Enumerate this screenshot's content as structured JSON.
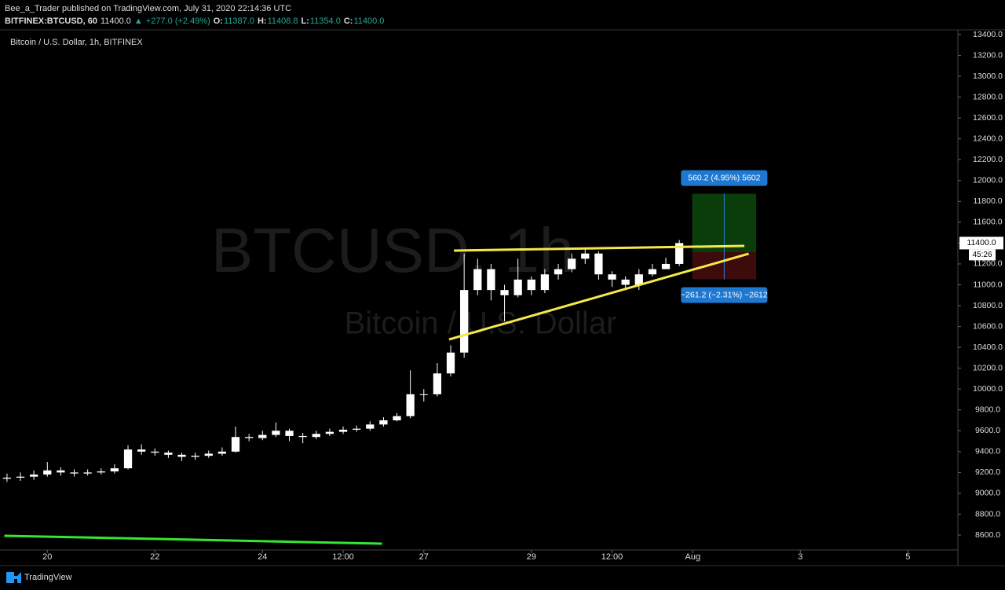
{
  "header": {
    "line1": "Bee_a_Trader published on TradingView.com, July 31, 2020 22:14:36 UTC",
    "symbol": "BITFINEX:BTCUSD, 60",
    "price": "11400.0",
    "arrow": "▲",
    "change": "+277.0 (+2.49%)",
    "ohlc": [
      {
        "label": "O:",
        "value": "11387.0"
      },
      {
        "label": "H:",
        "value": "11408.8"
      },
      {
        "label": "L:",
        "value": "11354.0"
      },
      {
        "label": "C:",
        "value": "11400.0"
      }
    ]
  },
  "footer": "TradingView",
  "chart_data": {
    "type": "candlestick",
    "title": "Bitcoin / U.S. Dollar, 1h, BITFINEX",
    "watermark": "BTCUSD, 1h",
    "watermark_sub": "Bitcoin / U.S. Dollar",
    "color": "#ffffff",
    "grid": false,
    "xlim": [
      19.12,
      36.93
    ],
    "xticks": [
      20,
      22,
      24,
      {
        "value": 25.5,
        "label": "12:00"
      },
      27,
      29,
      {
        "value": 30.5,
        "label": "12:00"
      },
      {
        "value": 32,
        "label": "Aug"
      },
      {
        "value": 34,
        "label": "3"
      },
      {
        "value": 36,
        "label": "5"
      }
    ],
    "ylim": [
      8457,
      13445
    ],
    "yticks": [
      {
        "value": 8600,
        "label": "8600.0"
      },
      {
        "value": 8800,
        "label": "8800.0"
      },
      {
        "value": 9000,
        "label": "9000.0"
      },
      {
        "value": 9200,
        "label": "9200.0"
      },
      {
        "value": 9400,
        "label": "9400.0"
      },
      {
        "value": 9600,
        "label": "9600.0"
      },
      {
        "value": 9800,
        "label": "9800.0"
      },
      {
        "value": 10000,
        "label": "10000.0"
      },
      {
        "value": 10200,
        "label": "10200.0"
      },
      {
        "value": 10400,
        "label": "10400.0"
      },
      {
        "value": 10600,
        "label": "10600.0"
      },
      {
        "value": 10800,
        "label": "10800.0"
      },
      {
        "value": 11000,
        "label": "11000.0"
      },
      {
        "value": 11200,
        "label": "11200.0"
      },
      {
        "value": 11400,
        "label": "11400.0"
      },
      {
        "value": 11600,
        "label": "11600.0"
      },
      {
        "value": 11800,
        "label": "11800.0"
      },
      {
        "value": 12000,
        "label": "12000.0"
      },
      {
        "value": 12200,
        "label": "12200.0"
      },
      {
        "value": 12400,
        "label": "12400.0"
      },
      {
        "value": 12600,
        "label": "12600.0"
      },
      {
        "value": 12800,
        "label": "12800.0"
      },
      {
        "value": 13000,
        "label": "13000.0"
      },
      {
        "value": 13200,
        "label": "13200.0"
      },
      {
        "value": 13400,
        "label": "13400.0"
      }
    ],
    "x": [
      19.25,
      19.5,
      19.75,
      20,
      20.25,
      20.5,
      20.75,
      21,
      21.25,
      21.5,
      21.75,
      22,
      22.25,
      22.5,
      22.75,
      23,
      23.25,
      23.5,
      23.75,
      24,
      24.25,
      24.5,
      24.75,
      25,
      25.25,
      25.5,
      25.75,
      26,
      26.25,
      26.5,
      26.75,
      27,
      27.25,
      27.5,
      27.75,
      28,
      28.25,
      28.5,
      28.75,
      29,
      29.25,
      29.5,
      29.75,
      30,
      30.25,
      30.5,
      30.75,
      31,
      31.25,
      31.5,
      31.75
    ],
    "open": [
      9140,
      9150,
      9160,
      9180,
      9220,
      9200,
      9190,
      9200,
      9210,
      9240,
      9420,
      9400,
      9390,
      9370,
      9350,
      9360,
      9380,
      9400,
      9540,
      9530,
      9560,
      9600,
      9550,
      9540,
      9570,
      9590,
      9610,
      9620,
      9660,
      9700,
      9740,
      9950,
      9950,
      10150,
      10350,
      10950,
      11150,
      10950,
      10900,
      11050,
      10950,
      11100,
      11150,
      11250,
      11300,
      11100,
      11050,
      11000,
      11100,
      11150,
      11200
    ],
    "high": [
      9190,
      9200,
      9220,
      9300,
      9250,
      9230,
      9230,
      9240,
      9280,
      9460,
      9470,
      9430,
      9410,
      9390,
      9390,
      9410,
      9440,
      9640,
      9570,
      9600,
      9680,
      9620,
      9580,
      9600,
      9620,
      9640,
      9650,
      9690,
      9730,
      9770,
      10180,
      10000,
      10250,
      10420,
      11300,
      11250,
      11200,
      11000,
      11250,
      11080,
      11150,
      11200,
      11300,
      11350,
      11320,
      11130,
      11080,
      11150,
      11200,
      11260,
      11430
    ],
    "low": [
      9110,
      9120,
      9130,
      9160,
      9170,
      9160,
      9170,
      9180,
      9190,
      9230,
      9370,
      9360,
      9340,
      9310,
      9320,
      9340,
      9360,
      9390,
      9500,
      9510,
      9540,
      9500,
      9480,
      9520,
      9550,
      9570,
      9590,
      9600,
      9640,
      9690,
      9720,
      9880,
      9930,
      10120,
      10300,
      10900,
      10850,
      10650,
      10880,
      10900,
      10920,
      11050,
      11120,
      11200,
      11050,
      10980,
      10950,
      10950,
      11080,
      11150,
      11180
    ],
    "close": [
      9150,
      9160,
      9180,
      9220,
      9200,
      9190,
      9200,
      9210,
      9240,
      9420,
      9400,
      9390,
      9370,
      9350,
      9360,
      9380,
      9400,
      9540,
      9530,
      9560,
      9600,
      9550,
      9540,
      9570,
      9590,
      9610,
      9620,
      9660,
      9700,
      9740,
      9950,
      9950,
      10150,
      10350,
      10950,
      11150,
      10950,
      10900,
      11050,
      10950,
      11100,
      11150,
      11250,
      11300,
      11100,
      11050,
      11000,
      11100,
      11150,
      11200,
      11400
    ],
    "trendlines": [
      {
        "color": "#f5e94a",
        "x": [
          27.56,
          32.96
        ],
        "y": [
          11328,
          11373
        ]
      },
      {
        "color": "#f5e94a",
        "x": [
          27.47,
          33.04
        ],
        "y": [
          10476,
          11298
        ]
      },
      {
        "color": "#33e633",
        "x": [
          19.2,
          26.22
        ],
        "y": [
          8593,
          8517
        ]
      }
    ],
    "position": {
      "x": [
        31.99,
        33.18
      ],
      "entry": 11313,
      "target": 11873.2,
      "stop": 11051.8,
      "target_label": "560.2 (4.95%) 5602",
      "stop_label": "−261.2 (−2.31%) −2612"
    },
    "last_price": {
      "value": 11400,
      "label": "11400.0"
    },
    "countdown": "45:26"
  }
}
